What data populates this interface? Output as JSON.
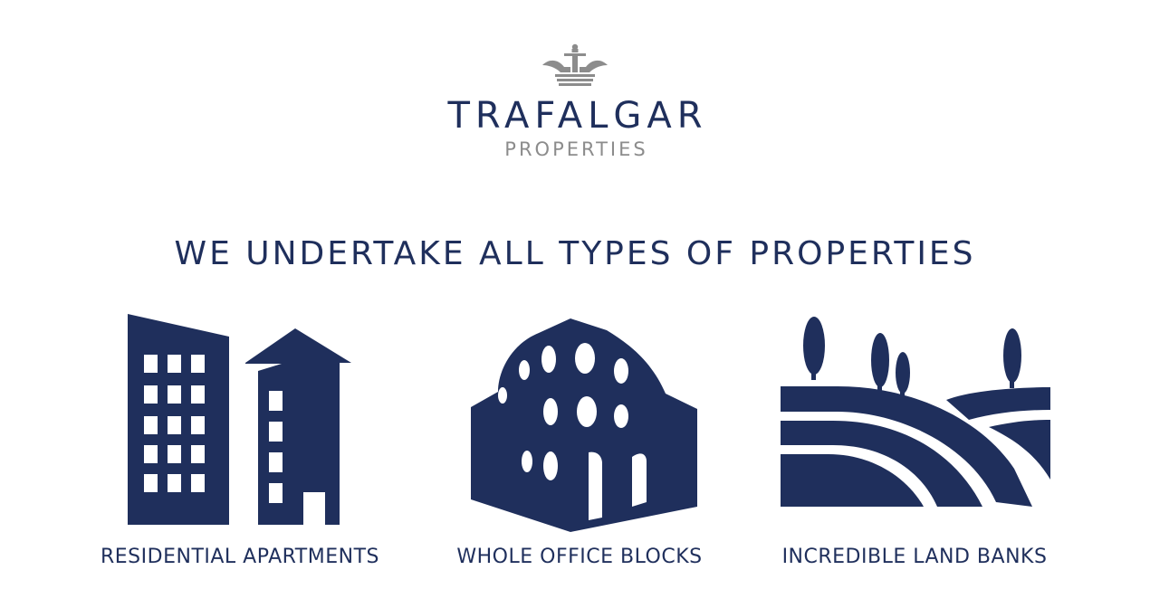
{
  "brand": {
    "name": "TRAFALGAR",
    "subtitle": "PROPERTIES",
    "crown_icon": "crown-icon"
  },
  "headline": "WE UNDERTAKE ALL TYPES OF PROPERTIES",
  "categories": [
    {
      "label": "RESIDENTIAL APARTMENTS",
      "icon": "apartment-buildings-icon"
    },
    {
      "label": "WHOLE OFFICE BLOCKS",
      "icon": "office-block-icon"
    },
    {
      "label": "INCREDIBLE LAND BANKS",
      "icon": "land-fields-icon"
    }
  ],
  "colors": {
    "navy": "#1f2f5c",
    "grey": "#8c8c8c",
    "background": "#ffffff"
  }
}
